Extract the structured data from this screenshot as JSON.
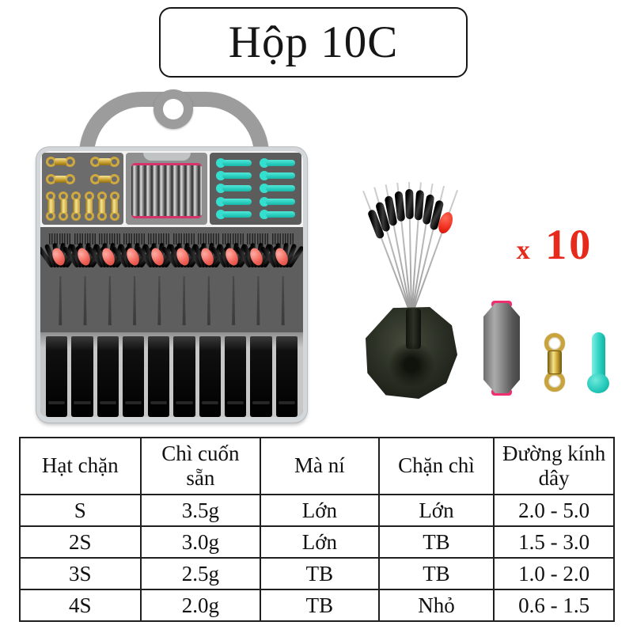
{
  "header": {
    "title": "Hộp 10C"
  },
  "product": {
    "quantity_label": "x 10",
    "colors": {
      "accent_red": "#e62a1c",
      "gold": "#cfa83e",
      "cyan": "#35dfcf",
      "pink_trim": "#d6336b",
      "stopper_bead_red": "#f2675d"
    },
    "graphics": [
      "tackle-box-icon",
      "box-handle-icon",
      "swivel-compartment-icon",
      "coiled-lead-compartment-icon",
      "rubber-pin-compartment-icon",
      "stopper-sets-row",
      "float-slot-rack",
      "stopper-bundle-icon",
      "rubber-base-icon",
      "lead-weight-icon",
      "barrel-swivel-icon",
      "rubber-pin-icon"
    ]
  },
  "spec_table": {
    "headers": [
      "Hạt chặn",
      "Chì cuốn sẵn",
      "Mà ní",
      "Chặn chì",
      "Đường kính dây"
    ],
    "rows": [
      [
        "S",
        "3.5g",
        "Lớn",
        "Lớn",
        "2.0 - 5.0"
      ],
      [
        "2S",
        "3.0g",
        "Lớn",
        "TB",
        "1.5 - 3.0"
      ],
      [
        "3S",
        "2.5g",
        "TB",
        "TB",
        "1.0 - 2.0"
      ],
      [
        "4S",
        "2.0g",
        "TB",
        "Nhỏ",
        "0.6 - 1.5"
      ]
    ]
  }
}
